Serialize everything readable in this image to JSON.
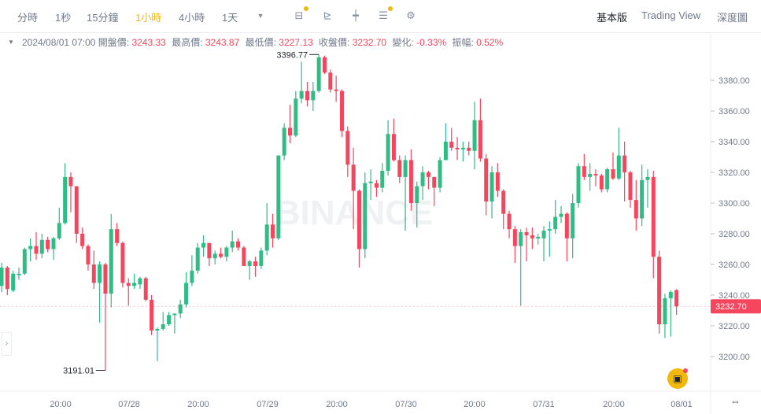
{
  "toolbar": {
    "intervals": [
      "分時",
      "1秒",
      "15分鐘",
      "1小時",
      "4小時",
      "1天"
    ],
    "active_interval": "1小時",
    "more_icon": "caret-down-icon",
    "tools": [
      "calendar-indicator-icon",
      "draw-line-icon",
      "candle-type-icon",
      "settings-layers-icon",
      "gear-icon"
    ],
    "views": [
      "基本版",
      "Trading View",
      "深度圖"
    ],
    "active_view": "基本版"
  },
  "info": {
    "time": "2024/08/01 07:00",
    "open_label": "開盤價:",
    "open": "3243.33",
    "high_label": "最高價:",
    "high": "3243.87",
    "low_label": "最低價:",
    "low": "3227.13",
    "close_label": "收盤價:",
    "close": "3232.70",
    "change_label": "變化:",
    "change": "-0.33%",
    "amp_label": "振幅:",
    "amp": "0.52%"
  },
  "watermark": "BINANCE",
  "colors": {
    "up": "#2ebd85",
    "down": "#f6465d",
    "accent": "#f0b90b"
  },
  "chart_data": {
    "type": "candlestick",
    "interval": "1h",
    "last_candle_time": "2024/08/01 07:00",
    "ylim": [
      3180,
      3410
    ],
    "yticks": [
      3200,
      3220,
      3240,
      3260,
      3280,
      3300,
      3320,
      3340,
      3360,
      3380
    ],
    "xtick_labels": [
      "20:00",
      "07/28",
      "20:00",
      "07/29",
      "20:00",
      "07/30",
      "20:00",
      "07/31",
      "20:00",
      "08/01"
    ],
    "max_label": "3396.77",
    "min_label": "3191.01",
    "last_price": "3232.70",
    "grid": false,
    "ohlc": [
      [
        3246,
        3261,
        3242,
        3258
      ],
      [
        3258,
        3259,
        3240,
        3244
      ],
      [
        3243,
        3256,
        3242,
        3254
      ],
      [
        3253,
        3258,
        3250,
        3254
      ],
      [
        3254,
        3271,
        3253,
        3270
      ],
      [
        3270,
        3277,
        3262,
        3272
      ],
      [
        3272,
        3281,
        3263,
        3267
      ],
      [
        3267,
        3280,
        3264,
        3276
      ],
      [
        3276,
        3278,
        3268,
        3270
      ],
      [
        3270,
        3278,
        3263,
        3277
      ],
      [
        3277,
        3297,
        3276,
        3287
      ],
      [
        3287,
        3326,
        3286,
        3317
      ],
      [
        3317,
        3320,
        3294,
        3311
      ],
      [
        3311,
        3309,
        3274,
        3280
      ],
      [
        3280,
        3284,
        3270,
        3272
      ],
      [
        3272,
        3273,
        3256,
        3260
      ],
      [
        3260,
        3269,
        3244,
        3248
      ],
      [
        3248,
        3262,
        3222,
        3260
      ],
      [
        3260,
        3261,
        3191.01,
        3241
      ],
      [
        3241,
        3293,
        3232,
        3283
      ],
      [
        3283,
        3287,
        3272,
        3274
      ],
      [
        3274,
        3275,
        3245,
        3248
      ],
      [
        3248,
        3251,
        3233,
        3246
      ],
      [
        3246,
        3254,
        3244,
        3248
      ],
      [
        3247,
        3252,
        3244,
        3251
      ],
      [
        3251,
        3252,
        3236,
        3237
      ],
      [
        3237,
        3240,
        3214,
        3217
      ],
      [
        3217,
        3219,
        3197,
        3218
      ],
      [
        3218,
        3229,
        3217,
        3221
      ],
      [
        3221,
        3229,
        3220,
        3227
      ],
      [
        3227,
        3228,
        3215,
        3228
      ],
      [
        3228,
        3237,
        3225,
        3234
      ],
      [
        3234,
        3255,
        3232,
        3248
      ],
      [
        3248,
        3266,
        3246,
        3256
      ],
      [
        3256,
        3274,
        3254,
        3271
      ],
      [
        3271,
        3279,
        3265,
        3274
      ],
      [
        3274,
        3274,
        3259,
        3264
      ],
      [
        3264,
        3269,
        3260,
        3267
      ],
      [
        3267,
        3271,
        3264,
        3265
      ],
      [
        3265,
        3272,
        3262,
        3271
      ],
      [
        3271,
        3282,
        3268,
        3275
      ],
      [
        3275,
        3277,
        3269,
        3271
      ],
      [
        3271,
        3272,
        3259,
        3259
      ],
      [
        3259,
        3263,
        3250,
        3262
      ],
      [
        3262,
        3265,
        3252,
        3259
      ],
      [
        3259,
        3271,
        3257,
        3269
      ],
      [
        3269,
        3300,
        3266,
        3286
      ],
      [
        3286,
        3293,
        3271,
        3277
      ],
      [
        3277,
        3331,
        3276,
        3331
      ],
      [
        3331,
        3352,
        3328,
        3349
      ],
      [
        3349,
        3364,
        3339,
        3344
      ],
      [
        3344,
        3373,
        3343,
        3368
      ],
      [
        3368,
        3392,
        3365,
        3373
      ],
      [
        3373,
        3379,
        3363,
        3367
      ],
      [
        3367,
        3379,
        3360,
        3373
      ],
      [
        3373,
        3396.77,
        3372,
        3395
      ],
      [
        3395,
        3396,
        3384,
        3385
      ],
      [
        3385,
        3387,
        3372,
        3374
      ],
      [
        3374,
        3383,
        3366,
        3373
      ],
      [
        3373,
        3374,
        3343,
        3347
      ],
      [
        3347,
        3350,
        3317,
        3325
      ],
      [
        3325,
        3336,
        3283,
        3308
      ],
      [
        3308,
        3309,
        3258,
        3270
      ],
      [
        3270,
        3320,
        3264,
        3313
      ],
      [
        3313,
        3322,
        3302,
        3314
      ],
      [
        3313,
        3315,
        3304,
        3310
      ],
      [
        3310,
        3326,
        3307,
        3321
      ],
      [
        3321,
        3354,
        3318,
        3345
      ],
      [
        3345,
        3355,
        3327,
        3328
      ],
      [
        3328,
        3331,
        3313,
        3317
      ],
      [
        3317,
        3331,
        3282,
        3328
      ],
      [
        3328,
        3335,
        3295,
        3300
      ],
      [
        3300,
        3314,
        3284,
        3311
      ],
      [
        3311,
        3324,
        3302,
        3320
      ],
      [
        3320,
        3321,
        3309,
        3317
      ],
      [
        3317,
        3317,
        3298,
        3310
      ],
      [
        3310,
        3330,
        3307,
        3328
      ],
      [
        3328,
        3352,
        3328,
        3340
      ],
      [
        3340,
        3349,
        3334,
        3336
      ],
      [
        3336,
        3343,
        3328,
        3335
      ],
      [
        3335,
        3340,
        3327,
        3336
      ],
      [
        3336,
        3340,
        3331,
        3334
      ],
      [
        3334,
        3366,
        3322,
        3354
      ],
      [
        3354,
        3368,
        3327,
        3329
      ],
      [
        3329,
        3332,
        3292,
        3301
      ],
      [
        3301,
        3324,
        3290,
        3320
      ],
      [
        3320,
        3326,
        3304,
        3308
      ],
      [
        3308,
        3309,
        3283,
        3293
      ],
      [
        3293,
        3295,
        3277,
        3283
      ],
      [
        3283,
        3285,
        3261,
        3272
      ],
      [
        3272,
        3283,
        3233,
        3281
      ],
      [
        3281,
        3284,
        3262,
        3279
      ],
      [
        3279,
        3284,
        3270,
        3277
      ],
      [
        3277,
        3280,
        3273,
        3278
      ],
      [
        3277,
        3285,
        3262,
        3282
      ],
      [
        3282,
        3288,
        3265,
        3283
      ],
      [
        3283,
        3302,
        3280,
        3291
      ],
      [
        3291,
        3298,
        3287,
        3293
      ],
      [
        3293,
        3294,
        3262,
        3277
      ],
      [
        3277,
        3306,
        3264,
        3300
      ],
      [
        3300,
        3326,
        3297,
        3324
      ],
      [
        3324,
        3332,
        3315,
        3317
      ],
      [
        3317,
        3326,
        3308,
        3319
      ],
      [
        3319,
        3322,
        3311,
        3318
      ],
      [
        3318,
        3319,
        3307,
        3309
      ],
      [
        3309,
        3323,
        3307,
        3322
      ],
      [
        3322,
        3333,
        3315,
        3316
      ],
      [
        3316,
        3349,
        3315,
        3331
      ],
      [
        3331,
        3340,
        3301,
        3320
      ],
      [
        3320,
        3321,
        3297,
        3302
      ],
      [
        3302,
        3315,
        3282,
        3290
      ],
      [
        3290,
        3325,
        3285,
        3315
      ],
      [
        3315,
        3322,
        3297,
        3317
      ],
      [
        3317,
        3321,
        3251,
        3265
      ],
      [
        3265,
        3269,
        3215,
        3221
      ],
      [
        3221,
        3241,
        3212,
        3238
      ],
      [
        3238,
        3243,
        3213,
        3242
      ],
      [
        3243.33,
        3243.87,
        3227.13,
        3232.7
      ]
    ]
  }
}
